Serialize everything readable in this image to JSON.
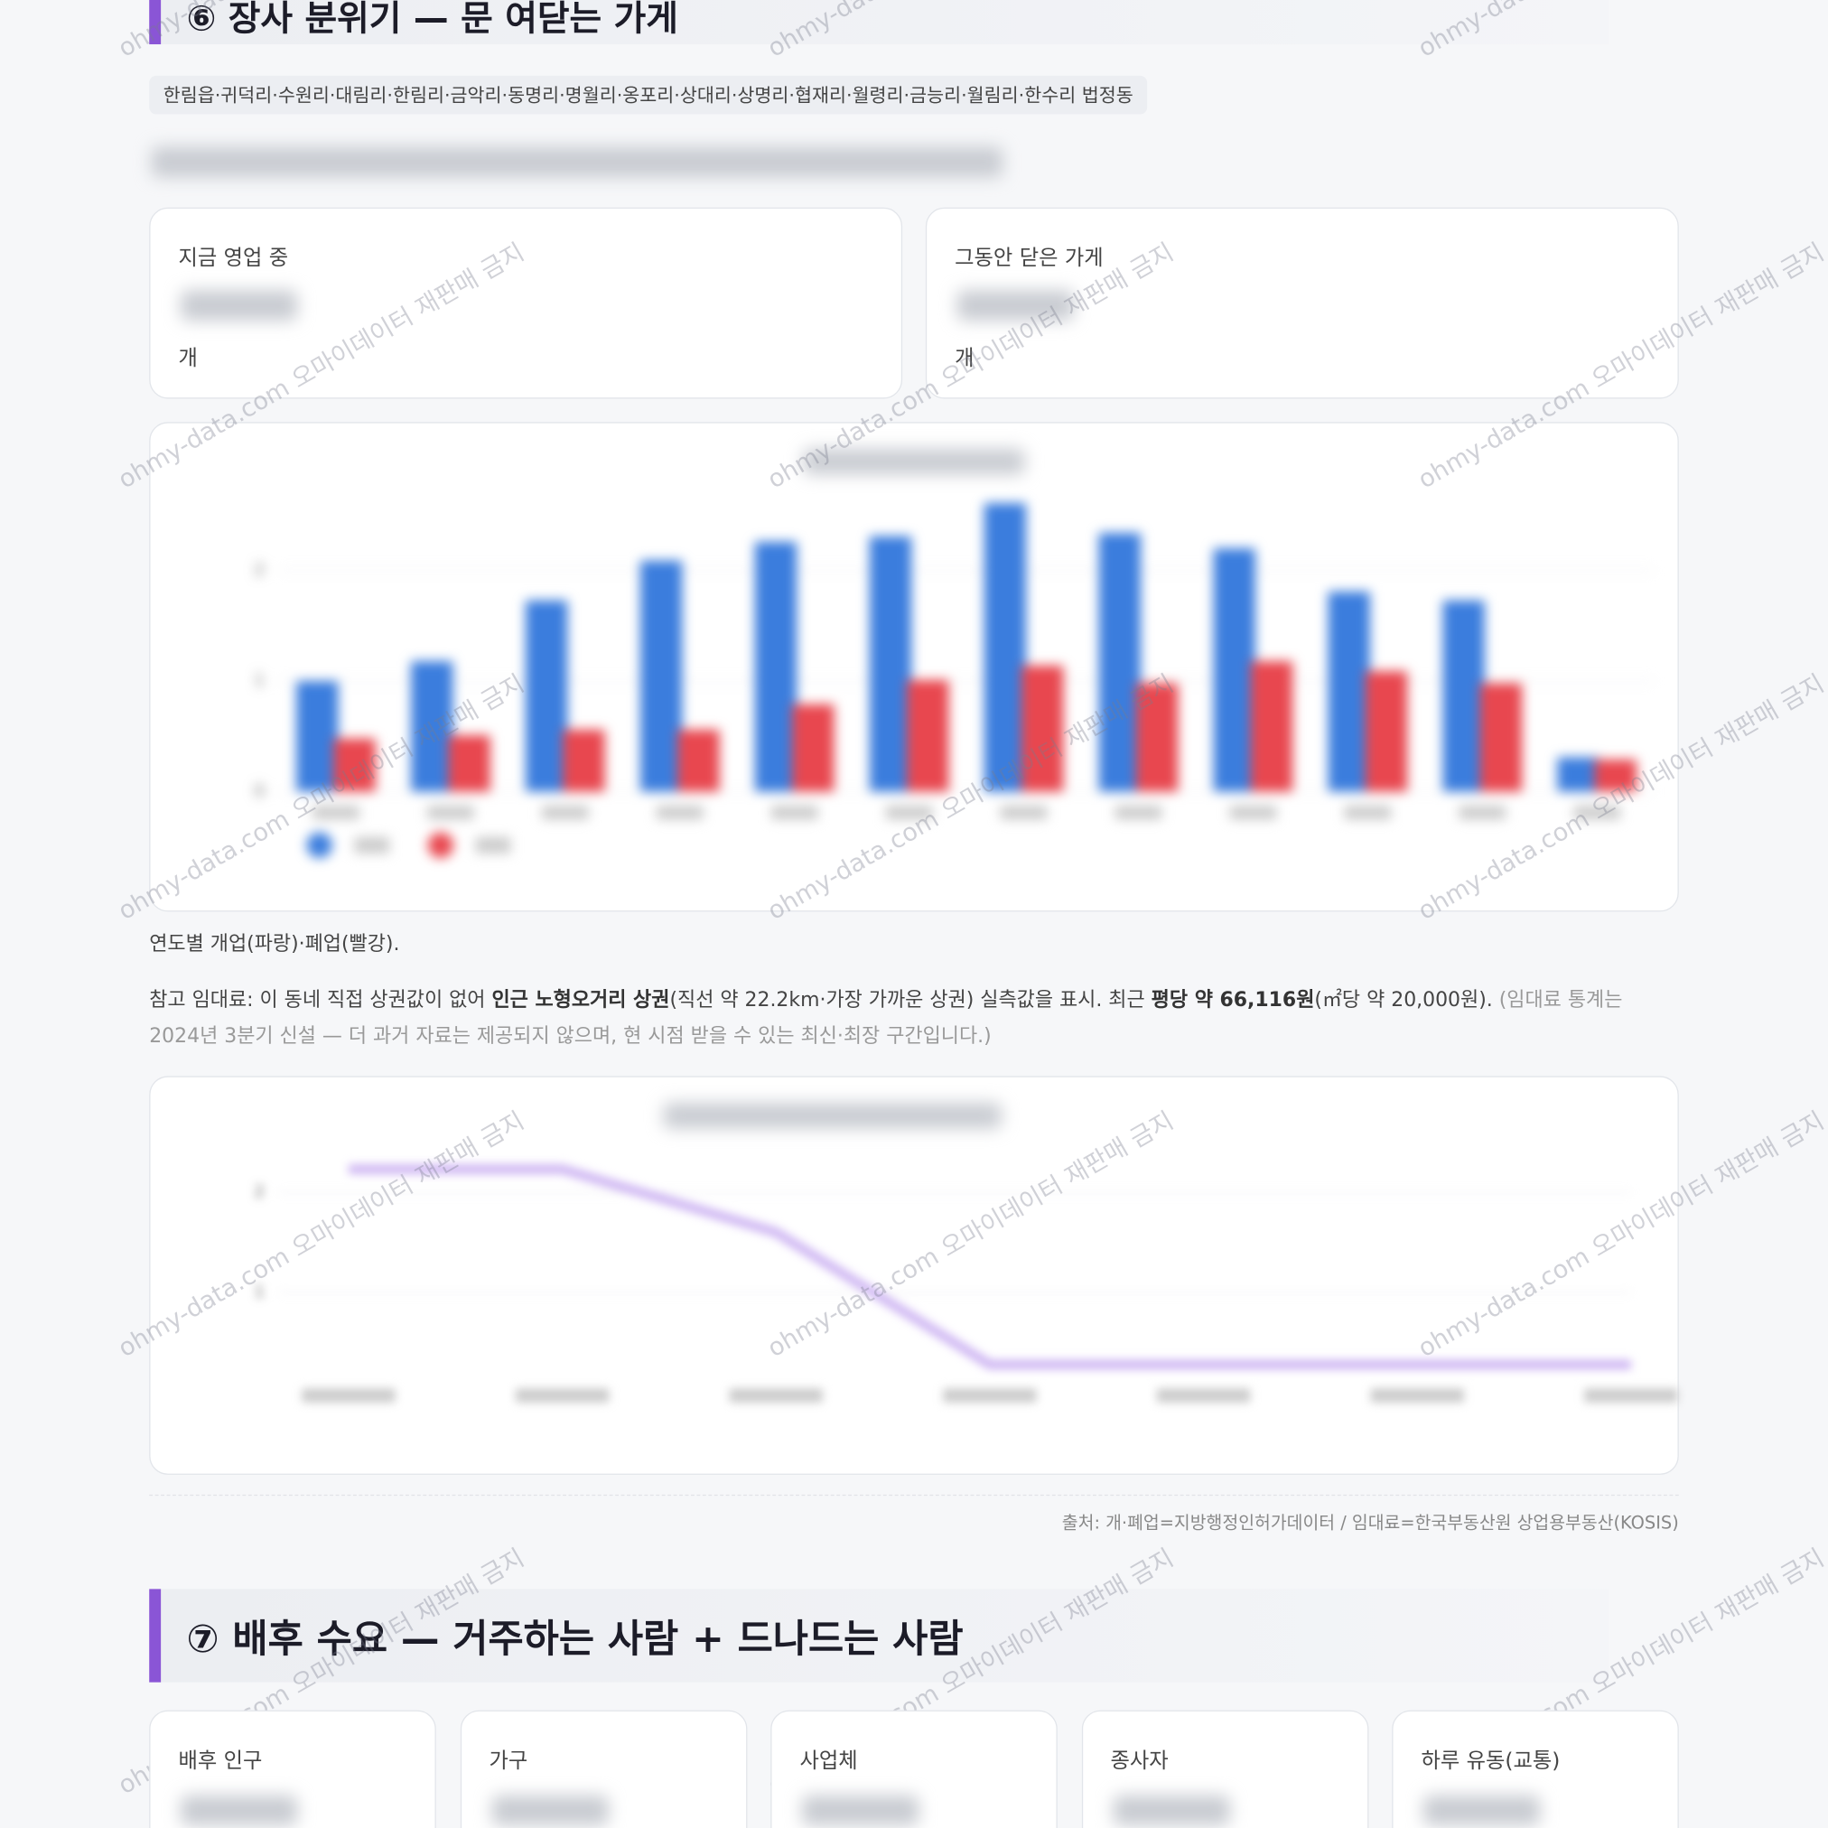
{
  "section6": {
    "title": "⑥ 장사 분위기 — 문 여닫는 가게",
    "chip": "한림읍·귀덕리·수원리·대림리·한림리·금악리·동명리·명월리·옹포리·상대리·상명리·협재리·월령리·금능리·월림리·한수리 법정동",
    "cards": [
      {
        "label": "지금 영업 중",
        "unit": "개"
      },
      {
        "label": "그동안 닫은 가게",
        "unit": "개"
      }
    ],
    "caption": "연도별 개업(파랑)·폐업(빨강).",
    "note": [
      {
        "text": "참고 임대료: 이 동네 직접 상권값이 없어 ",
        "style": "normal"
      },
      {
        "text": "인근 노형오거리 상권",
        "style": "bold"
      },
      {
        "text": "(직선 약 22.2km·가장 가까운 상권) 실측값을 표시. 최근 ",
        "style": "normal"
      },
      {
        "text": "평당 약 66,116원",
        "style": "bold"
      },
      {
        "text": "(㎡당 약 20,000원). ",
        "style": "normal"
      },
      {
        "text": "(임대료 통계는 2024년 3분기 신설 — 더 과거 자료는 제공되지 않으며, 현 시점 받을 수 있는 최신·최장 구간입니다.)",
        "style": "muted"
      }
    ],
    "source": "출처: 개·폐업=지방행정인허가데이터 / 임대료=한국부동산원 상업용부동산(KOSIS)"
  },
  "chart_data": [
    {
      "type": "bar",
      "categories": [
        null,
        null,
        null,
        null,
        null,
        null,
        null,
        null,
        null,
        null,
        null,
        null
      ],
      "series": [
        {
          "color": "#3b7ddd",
          "values": [
            1.0,
            1.18,
            1.73,
            2.09,
            2.26,
            2.31,
            2.61,
            2.34,
            2.2,
            1.81,
            1.73,
            0.31
          ]
        },
        {
          "color": "#e8474f",
          "values": [
            0.48,
            0.51,
            0.56,
            0.56,
            0.79,
            1.01,
            1.14,
            0.98,
            1.18,
            1.09,
            0.98,
            0.29
          ]
        }
      ],
      "ylim": [
        0,
        2.7
      ],
      "yticks": [
        0,
        1,
        2
      ],
      "grid": true
    },
    {
      "type": "line",
      "categories": [
        null,
        null,
        null,
        null,
        null,
        null,
        null
      ],
      "series": [
        {
          "color": "#cdb4f2",
          "values": [
            2.23,
            2.23,
            1.6,
            0.28,
            0.28,
            0.28,
            0.28
          ]
        }
      ],
      "ylim": [
        0.1,
        2.45
      ],
      "yticks": [
        1,
        2
      ],
      "grid": true
    }
  ],
  "section7": {
    "title": "⑦ 배후 수요 — 거주하는 사람 + 드나드는 사람",
    "cards": [
      "배후 인구",
      "가구",
      "사업체",
      "종사자",
      "하루 유동(교통)"
    ]
  },
  "watermark": "ohmy-data.com 오마이데이터 재판매 금지"
}
